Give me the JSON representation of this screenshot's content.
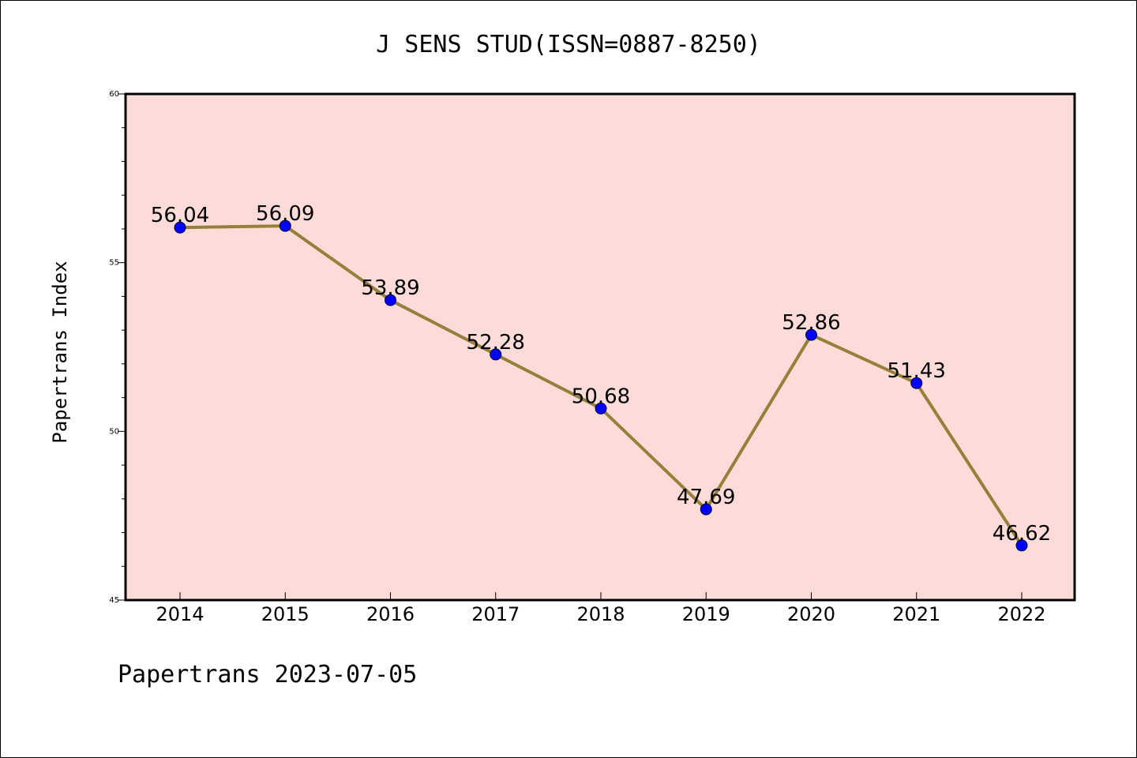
{
  "chart_data": {
    "type": "line",
    "title": "J SENS STUD(ISSN=0887-8250)",
    "xlabel": "",
    "ylabel": "Papertrans Index",
    "categories": [
      "2014",
      "2015",
      "2016",
      "2017",
      "2018",
      "2019",
      "2020",
      "2021",
      "2022"
    ],
    "values": [
      56.04,
      56.09,
      53.89,
      52.28,
      50.68,
      47.69,
      52.86,
      51.43,
      46.62
    ],
    "data_labels": [
      "56.04",
      "56.09",
      "53.89",
      "52.28",
      "50.68",
      "47.69",
      "52.86",
      "51.43",
      "46.62"
    ],
    "ylim": [
      45,
      60
    ],
    "yticks": [
      "45",
      "50",
      "55",
      "60"
    ],
    "grid": false,
    "legend": "none",
    "colors": {
      "plot_background": "#fddbd8",
      "line": "#94803a",
      "marker": "#0000ff"
    }
  },
  "footer": {
    "text": "Papertrans 2023-07-05"
  }
}
